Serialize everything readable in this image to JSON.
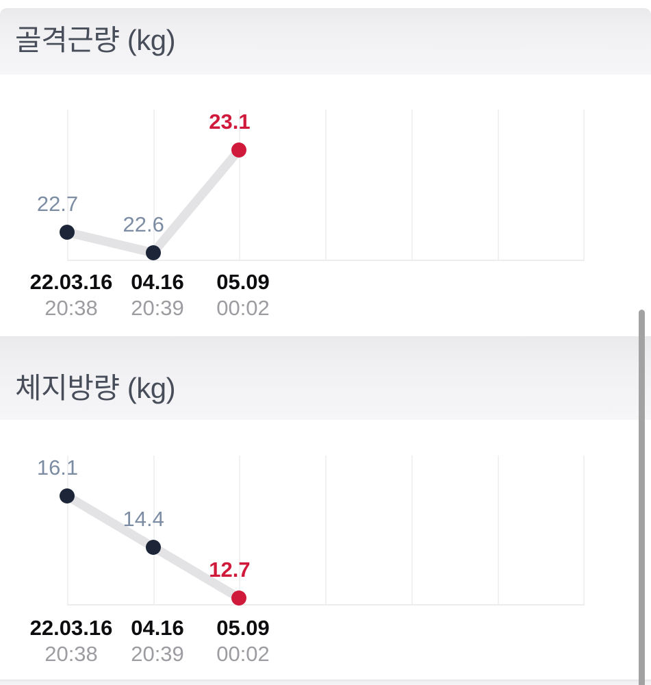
{
  "app": {
    "screen_name": "body-composition-trends"
  },
  "colors": {
    "accent_red": "#d01a3c",
    "dot_navy": "#1c2638",
    "value_label_blue_gray": "#7b8ca3",
    "trend_line_gray": "#e3e3e5",
    "grid_gray": "#f1f1f3",
    "axis_gray": "#ededef",
    "date_black": "#0d0d0f",
    "time_gray": "#9c9ca1",
    "header_text": "#474e5a",
    "header_band_top": "#eaeaec",
    "header_band_bottom": "#f6f6f8",
    "scrollbar_gray": "#a2a2a2"
  },
  "sections": [
    {
      "title": "골격근량 (kg)",
      "chart_data": {
        "type": "line",
        "title": "골격근량 (kg)",
        "unit": "kg",
        "categories": [
          "22.03.16 20:38",
          "04.16 20:39",
          "05.09 00:02"
        ],
        "x_dates": [
          "22.03.16",
          "04.16",
          "05.09"
        ],
        "x_times": [
          "20:38",
          "20:39",
          "00:02"
        ],
        "values": [
          22.7,
          22.6,
          23.1
        ],
        "value_labels": [
          "22.7",
          "22.6",
          "23.1"
        ],
        "latest_index": 2,
        "latest_highlight_color": "#d01a3c",
        "grid": "vertical-only",
        "legend": "none",
        "ylim": [
          22.45,
          23.35
        ]
      }
    },
    {
      "title": "체지방량 (kg)",
      "chart_data": {
        "type": "line",
        "title": "체지방량 (kg)",
        "unit": "kg",
        "categories": [
          "22.03.16 20:38",
          "04.16 20:39",
          "05.09 00:02"
        ],
        "x_dates": [
          "22.03.16",
          "04.16",
          "05.09"
        ],
        "x_times": [
          "20:38",
          "20:39",
          "00:02"
        ],
        "values": [
          16.1,
          14.4,
          12.7
        ],
        "value_labels": [
          "16.1",
          "14.4",
          "12.7"
        ],
        "latest_index": 2,
        "latest_highlight_color": "#d01a3c",
        "grid": "vertical-only",
        "legend": "none",
        "ylim": [
          12.5,
          16.6
        ]
      }
    }
  ]
}
